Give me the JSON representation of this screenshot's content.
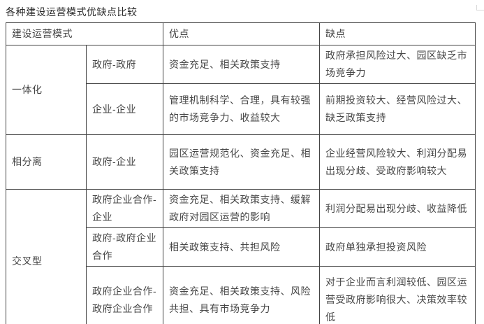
{
  "page": {
    "title": "各种建设运营模式优缺点比较"
  },
  "table": {
    "header": {
      "mode": "建设运营模式",
      "pros": "优点",
      "cons": "缺点"
    },
    "rows": [
      {
        "group": "一体化",
        "sub": "政府-政府",
        "pros": "资金充足、相关政策支持",
        "cons": "政府承担风险过大、园区缺乏市场竞争力"
      },
      {
        "sub": "企业-企业",
        "pros": "管理机制科学、合理，具有较强的市场竞争力、收益较大",
        "cons": "前期投资较大、经营风险过大、缺乏政策支持"
      },
      {
        "group": "相分离",
        "sub": "政府-企业",
        "pros": "园区运营规范化、资金充足、相关政策支持",
        "cons": "企业经营风险较大、利润分配易出现分歧、受政府影响较大"
      },
      {
        "group": "交叉型",
        "sub": "政府企业合作-企业",
        "pros": "资金充足、相关政策支持、缓解政府对园区运营的影响",
        "cons": "利润分配易出现分歧、收益降低"
      },
      {
        "sub": "政府-政府企业合作",
        "pros": "相关政策支持、共担风险",
        "cons": "政府单独承担投资风险"
      },
      {
        "sub": "政府企业合作-政府企业合作",
        "pros": "资金充足、相关政策支持、风险共担、具有市场竞争力",
        "cons": "对于企业而言利润较低、园区运营受政府影响很大、决策效率较低"
      }
    ]
  }
}
